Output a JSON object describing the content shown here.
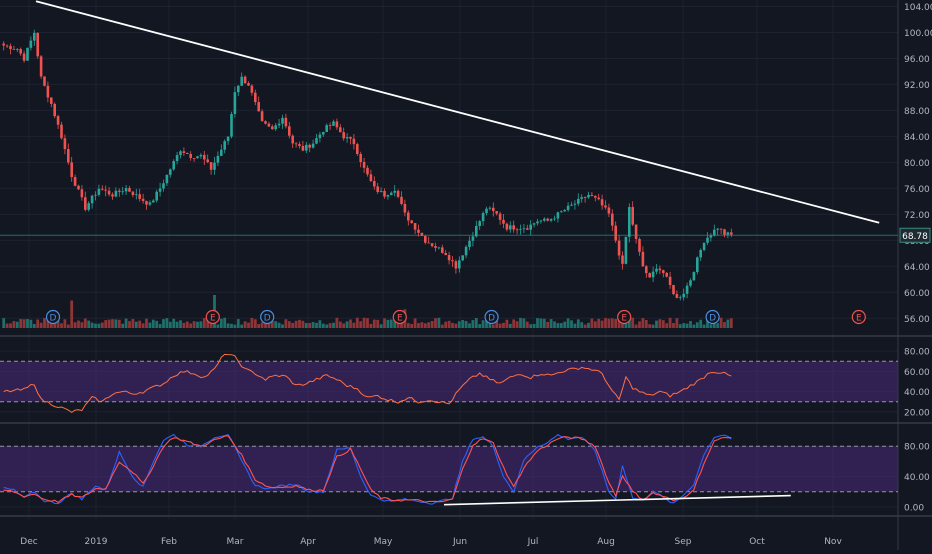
{
  "theme": {
    "background": "#131722",
    "grid": "#1e2230",
    "axis_text": "#b2b5be",
    "up": "#26a69a",
    "down": "#ef5350",
    "up_volume": "#1f6f6a",
    "down_volume": "#8f3537",
    "trendline": "#ffffff",
    "rsi_line": "#ff7043",
    "rsi_band": "#4a2a7a",
    "stoch_k": "#2962ff",
    "stoch_d": "#ff5252",
    "stoch_band": "#4a2a7a",
    "price_label_bg": "#1e2b33",
    "price_label_border": "#3d8a7e",
    "event_dividend_color": "#4a8fe0",
    "event_earnings_color": "#ef5350"
  },
  "chart_data": [
    {
      "type": "candlestick",
      "panel": "price",
      "y_ticks": [
        "104.00",
        "100.00",
        "96.00",
        "92.00",
        "88.00",
        "84.00",
        "80.00",
        "76.00",
        "72.00",
        "68.00",
        "64.00",
        "60.00",
        "56.00"
      ],
      "ylim": [
        54.5,
        105
      ],
      "last_price_label": "68.78",
      "last_price": 68.78,
      "x_ticks": [
        "Dec",
        "2019",
        "Feb",
        "Mar",
        "Apr",
        "May",
        "Jun",
        "Jul",
        "Aug",
        "Sep",
        "Oct",
        "Nov"
      ],
      "anchors": [
        [
          0,
          98
        ],
        [
          4,
          97.5
        ],
        [
          6,
          96
        ],
        [
          9,
          100
        ],
        [
          11,
          93
        ],
        [
          14,
          89
        ],
        [
          17,
          84
        ],
        [
          20,
          78
        ],
        [
          24,
          73
        ],
        [
          28,
          76
        ],
        [
          32,
          75
        ],
        [
          36,
          76
        ],
        [
          40,
          74.5
        ],
        [
          43,
          73.5
        ],
        [
          46,
          76
        ],
        [
          49,
          79
        ],
        [
          52,
          82
        ],
        [
          55,
          81
        ],
        [
          58,
          81
        ],
        [
          61,
          79
        ],
        [
          64,
          82
        ],
        [
          66,
          84
        ],
        [
          68,
          91
        ],
        [
          70,
          93
        ],
        [
          72,
          92
        ],
        [
          74,
          89
        ],
        [
          76,
          86
        ],
        [
          79,
          85
        ],
        [
          82,
          87
        ],
        [
          85,
          83
        ],
        [
          88,
          82
        ],
        [
          91,
          83
        ],
        [
          94,
          85
        ],
        [
          97,
          86
        ],
        [
          100,
          84
        ],
        [
          103,
          83
        ],
        [
          106,
          79
        ],
        [
          109,
          76
        ],
        [
          112,
          75
        ],
        [
          115,
          76
        ],
        [
          118,
          72
        ],
        [
          121,
          70
        ],
        [
          124,
          68
        ],
        [
          127,
          67
        ],
        [
          130,
          66
        ],
        [
          133,
          64
        ],
        [
          136,
          67
        ],
        [
          139,
          70
        ],
        [
          142,
          73
        ],
        [
          145,
          72
        ],
        [
          148,
          70
        ],
        [
          151,
          70
        ],
        [
          154,
          70
        ],
        [
          157,
          71
        ],
        [
          160,
          71
        ],
        [
          163,
          72
        ],
        [
          166,
          73
        ],
        [
          169,
          74
        ],
        [
          172,
          75
        ],
        [
          175,
          74
        ],
        [
          178,
          72
        ],
        [
          180,
          68
        ],
        [
          182,
          64
        ],
        [
          184,
          73
        ],
        [
          186,
          68
        ],
        [
          188,
          64
        ],
        [
          190,
          62
        ],
        [
          192,
          64
        ],
        [
          194,
          63
        ],
        [
          196,
          61
        ],
        [
          198,
          59
        ],
        [
          200,
          60
        ],
        [
          202,
          62
        ],
        [
          204,
          65
        ],
        [
          206,
          68
        ],
        [
          208,
          69
        ],
        [
          210,
          70
        ],
        [
          212,
          69
        ],
        [
          214,
          68.8
        ]
      ],
      "volume_spikes": [
        {
          "bar": 20,
          "value": 2.5
        },
        {
          "bar": 62,
          "value": 3.0
        },
        {
          "bar": 118,
          "value": 1.7
        },
        {
          "bar": 184,
          "value": 1.2
        }
      ],
      "trendlines": [
        {
          "from": {
            "bar": 10,
            "price": 104.8
          },
          "to": {
            "bar": 258,
            "price": 70.7
          }
        },
        {
          "from": {
            "bar": 130,
            "value": 3
          },
          "to": {
            "bar": 232,
            "value": 15
          },
          "panel": "stochastic"
        }
      ],
      "events": [
        {
          "label": "D",
          "type": "dividend",
          "bar": 15
        },
        {
          "label": "E",
          "type": "earnings",
          "bar": 62
        },
        {
          "label": "D",
          "type": "dividend",
          "bar": 78
        },
        {
          "label": "E",
          "type": "earnings",
          "bar": 117
        },
        {
          "label": "D",
          "type": "dividend",
          "bar": 144
        },
        {
          "label": "E",
          "type": "earnings",
          "bar": 183
        },
        {
          "label": "D",
          "type": "dividend",
          "bar": 209
        },
        {
          "label": "E",
          "type": "earnings",
          "bar": 252,
          "future": true
        }
      ]
    },
    {
      "type": "line",
      "panel": "rsi",
      "y_ticks": [
        "80.00",
        "60.00",
        "40.00",
        "20.00"
      ],
      "ylim": [
        12,
        92
      ],
      "band": [
        30,
        70
      ],
      "anchors": [
        [
          0,
          40
        ],
        [
          3,
          41
        ],
        [
          6,
          42
        ],
        [
          9,
          48
        ],
        [
          11,
          32
        ],
        [
          14,
          28
        ],
        [
          17,
          24
        ],
        [
          20,
          20
        ],
        [
          23,
          22
        ],
        [
          26,
          34
        ],
        [
          29,
          30
        ],
        [
          32,
          38
        ],
        [
          35,
          40
        ],
        [
          38,
          38
        ],
        [
          41,
          40
        ],
        [
          44,
          44
        ],
        [
          47,
          48
        ],
        [
          50,
          56
        ],
        [
          53,
          60
        ],
        [
          56,
          58
        ],
        [
          59,
          54
        ],
        [
          62,
          62
        ],
        [
          65,
          78
        ],
        [
          68,
          74
        ],
        [
          71,
          62
        ],
        [
          74,
          58
        ],
        [
          77,
          52
        ],
        [
          80,
          56
        ],
        [
          83,
          55
        ],
        [
          86,
          46
        ],
        [
          89,
          48
        ],
        [
          92,
          52
        ],
        [
          95,
          56
        ],
        [
          98,
          52
        ],
        [
          101,
          46
        ],
        [
          104,
          43
        ],
        [
          107,
          34
        ],
        [
          110,
          36
        ],
        [
          113,
          32
        ],
        [
          116,
          30
        ],
        [
          119,
          34
        ],
        [
          122,
          30
        ],
        [
          125,
          32
        ],
        [
          128,
          30
        ],
        [
          131,
          28
        ],
        [
          134,
          42
        ],
        [
          137,
          52
        ],
        [
          140,
          58
        ],
        [
          143,
          52
        ],
        [
          146,
          48
        ],
        [
          149,
          54
        ],
        [
          152,
          58
        ],
        [
          155,
          54
        ],
        [
          158,
          58
        ],
        [
          161,
          56
        ],
        [
          164,
          60
        ],
        [
          167,
          62
        ],
        [
          170,
          64
        ],
        [
          173,
          62
        ],
        [
          176,
          58
        ],
        [
          179,
          40
        ],
        [
          181,
          32
        ],
        [
          183,
          54
        ],
        [
          185,
          44
        ],
        [
          187,
          40
        ],
        [
          190,
          36
        ],
        [
          193,
          40
        ],
        [
          196,
          36
        ],
        [
          199,
          40
        ],
        [
          202,
          46
        ],
        [
          205,
          52
        ],
        [
          208,
          60
        ],
        [
          211,
          59
        ],
        [
          214,
          55
        ]
      ]
    },
    {
      "type": "line",
      "panel": "stochastic",
      "y_ticks": [
        "80.00",
        "40.00",
        "0.00"
      ],
      "ylim": [
        -8,
        108
      ],
      "band": [
        20,
        80
      ],
      "series": [
        {
          "key": "k",
          "anchors": [
            [
              0,
              25
            ],
            [
              3,
              22
            ],
            [
              6,
              12
            ],
            [
              9,
              20
            ],
            [
              12,
              8
            ],
            [
              16,
              5
            ],
            [
              20,
              18
            ],
            [
              23,
              10
            ],
            [
              27,
              28
            ],
            [
              30,
              22
            ],
            [
              34,
              72
            ],
            [
              38,
              40
            ],
            [
              41,
              26
            ],
            [
              44,
              60
            ],
            [
              47,
              88
            ],
            [
              50,
              95
            ],
            [
              54,
              82
            ],
            [
              58,
              80
            ],
            [
              62,
              92
            ],
            [
              66,
              96
            ],
            [
              70,
              60
            ],
            [
              74,
              28
            ],
            [
              78,
              24
            ],
            [
              82,
              28
            ],
            [
              86,
              30
            ],
            [
              90,
              20
            ],
            [
              94,
              20
            ],
            [
              98,
              75
            ],
            [
              102,
              78
            ],
            [
              105,
              40
            ],
            [
              108,
              15
            ],
            [
              111,
              10
            ],
            [
              114,
              7
            ],
            [
              117,
              10
            ],
            [
              120,
              9
            ],
            [
              123,
              7
            ],
            [
              126,
              5
            ],
            [
              129,
              8
            ],
            [
              132,
              12
            ],
            [
              135,
              60
            ],
            [
              138,
              90
            ],
            [
              141,
              92
            ],
            [
              144,
              80
            ],
            [
              147,
              40
            ],
            [
              150,
              20
            ],
            [
              153,
              62
            ],
            [
              157,
              80
            ],
            [
              160,
              85
            ],
            [
              163,
              95
            ],
            [
              166,
              90
            ],
            [
              170,
              92
            ],
            [
              174,
              74
            ],
            [
              178,
              20
            ],
            [
              180,
              10
            ],
            [
              182,
              55
            ],
            [
              185,
              12
            ],
            [
              188,
              8
            ],
            [
              191,
              22
            ],
            [
              194,
              12
            ],
            [
              197,
              4
            ],
            [
              200,
              16
            ],
            [
              203,
              30
            ],
            [
              206,
              70
            ],
            [
              209,
              92
            ],
            [
              212,
              95
            ],
            [
              214,
              88
            ]
          ]
        },
        {
          "key": "d",
          "anchors": [
            [
              0,
              22
            ],
            [
              3,
              20
            ],
            [
              6,
              14
            ],
            [
              9,
              17
            ],
            [
              12,
              10
            ],
            [
              16,
              7
            ],
            [
              20,
              16
            ],
            [
              23,
              12
            ],
            [
              27,
              24
            ],
            [
              30,
              24
            ],
            [
              34,
              60
            ],
            [
              38,
              46
            ],
            [
              41,
              30
            ],
            [
              44,
              54
            ],
            [
              47,
              80
            ],
            [
              50,
              92
            ],
            [
              54,
              86
            ],
            [
              58,
              80
            ],
            [
              62,
              88
            ],
            [
              66,
              94
            ],
            [
              70,
              68
            ],
            [
              74,
              36
            ],
            [
              78,
              26
            ],
            [
              82,
              26
            ],
            [
              86,
              28
            ],
            [
              90,
              22
            ],
            [
              94,
              22
            ],
            [
              98,
              66
            ],
            [
              102,
              76
            ],
            [
              105,
              50
            ],
            [
              108,
              22
            ],
            [
              111,
              12
            ],
            [
              114,
              9
            ],
            [
              117,
              9
            ],
            [
              120,
              9
            ],
            [
              123,
              8
            ],
            [
              126,
              6
            ],
            [
              129,
              7
            ],
            [
              132,
              10
            ],
            [
              135,
              50
            ],
            [
              138,
              82
            ],
            [
              141,
              90
            ],
            [
              144,
              84
            ],
            [
              147,
              52
            ],
            [
              150,
              26
            ],
            [
              153,
              52
            ],
            [
              157,
              74
            ],
            [
              160,
              82
            ],
            [
              163,
              90
            ],
            [
              166,
              92
            ],
            [
              170,
              90
            ],
            [
              174,
              80
            ],
            [
              178,
              32
            ],
            [
              180,
              15
            ],
            [
              182,
              42
            ],
            [
              185,
              20
            ],
            [
              188,
              10
            ],
            [
              191,
              18
            ],
            [
              194,
              14
            ],
            [
              197,
              8
            ],
            [
              200,
              12
            ],
            [
              203,
              24
            ],
            [
              206,
              58
            ],
            [
              209,
              86
            ],
            [
              212,
              93
            ],
            [
              214,
              90
            ]
          ]
        }
      ]
    }
  ]
}
